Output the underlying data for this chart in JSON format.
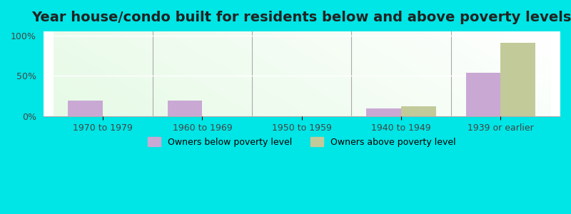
{
  "title": "Year house/condo built for residents below and above poverty levels",
  "categories": [
    "1970 to 1979",
    "1960 to 1969",
    "1950 to 1959",
    "1940 to 1949",
    "1939 or earlier"
  ],
  "below_poverty": [
    20,
    20,
    0,
    10,
    54
  ],
  "above_poverty": [
    0,
    0,
    0,
    13,
    91
  ],
  "below_color": "#c9a8d4",
  "above_color": "#c2ca9a",
  "background_outer": "#00e5e5",
  "yticks": [
    0,
    50,
    100
  ],
  "ytick_labels": [
    "0%",
    "50%",
    "100%"
  ],
  "legend_below": "Owners below poverty level",
  "legend_above": "Owners above poverty level",
  "title_fontsize": 14,
  "bar_width": 0.35,
  "ylim": [
    0,
    105
  ]
}
